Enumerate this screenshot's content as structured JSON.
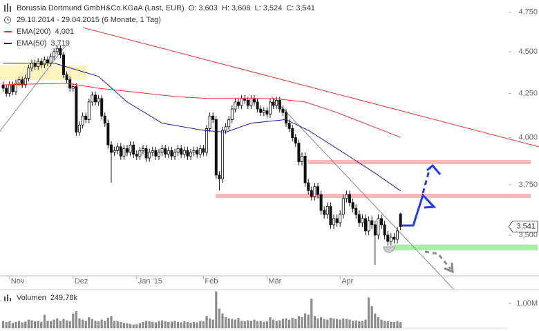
{
  "chart_data": {
    "type": "candlestick",
    "title": "Borussia Dortmund GmbH&Co.KGaA (Last, EUR)",
    "ohlc_labels": [
      "O: 3,603",
      "H: 3,608",
      "L: 3,524",
      "C: 3,541"
    ],
    "subtitle": "29.10.2014 - 29.04.2015 (6 Monate, 1 Tag)",
    "last_close_label": "3,541",
    "log": true,
    "ylim": [
      3.31,
      4.83
    ],
    "yticks": [
      {
        "value": 3.5,
        "label": "3,500"
      },
      {
        "value": 3.75,
        "label": "3,750"
      },
      {
        "value": 4.0,
        "label": "4,000"
      },
      {
        "value": 4.25,
        "label": "4,250"
      },
      {
        "value": 4.5,
        "label": "4,500"
      },
      {
        "value": 4.75,
        "label": "4,750"
      }
    ],
    "xlim": [
      -1,
      159
    ],
    "xticks": [
      {
        "value": 2,
        "label": "Nov"
      },
      {
        "value": 22,
        "label": "Dez"
      },
      {
        "value": 42,
        "label": "Jan '15"
      },
      {
        "value": 63,
        "label": "Feb"
      },
      {
        "value": 83,
        "label": "Mär"
      },
      {
        "value": 106,
        "label": "Apr"
      }
    ],
    "open": [
      4.3,
      4.28,
      4.25,
      4.3,
      4.26,
      4.31,
      4.33,
      4.3,
      4.34,
      4.4,
      4.43,
      4.41,
      4.44,
      4.42,
      4.45,
      4.43,
      4.47,
      4.5,
      4.52,
      4.48,
      4.36,
      4.33,
      4.28,
      4.29,
      4.03,
      4.07,
      4.12,
      4.1,
      4.2,
      4.24,
      4.2,
      4.22,
      4.12,
      4.08,
      3.96,
      3.92,
      3.93,
      3.95,
      3.9,
      3.94,
      3.92,
      3.96,
      3.91,
      3.9,
      3.93,
      3.94,
      3.89,
      3.92,
      3.93,
      3.9,
      3.92,
      3.94,
      3.91,
      3.93,
      3.9,
      3.92,
      3.94,
      3.91,
      3.93,
      3.9,
      3.92,
      3.93,
      3.91,
      3.94,
      3.92,
      4.05,
      4.12,
      4.1,
      3.8,
      3.78,
      4.04,
      4.06,
      4.1,
      4.16,
      4.2,
      4.18,
      4.22,
      4.21,
      4.18,
      4.22,
      4.2,
      4.16,
      4.14,
      4.15,
      4.13,
      4.2,
      4.18,
      4.21,
      4.16,
      4.14,
      4.08,
      4.05,
      4.0,
      3.97,
      3.87,
      3.9,
      3.76,
      3.72,
      3.69,
      3.74,
      3.7,
      3.62,
      3.6,
      3.64,
      3.55,
      3.58,
      3.56,
      3.6,
      3.68,
      3.7,
      3.66,
      3.63,
      3.6,
      3.56,
      3.58,
      3.52,
      3.57,
      3.55,
      3.5,
      3.58,
      3.55,
      3.5,
      3.47,
      3.49,
      3.48,
      3.603
    ],
    "high": [
      4.32,
      4.3,
      4.32,
      4.32,
      4.33,
      4.35,
      4.35,
      4.36,
      4.42,
      4.45,
      4.45,
      4.46,
      4.46,
      4.47,
      4.47,
      4.49,
      4.52,
      4.54,
      4.54,
      4.5,
      4.38,
      4.35,
      4.31,
      4.31,
      4.09,
      4.14,
      4.14,
      4.22,
      4.26,
      4.26,
      4.24,
      4.24,
      4.14,
      4.1,
      3.98,
      3.95,
      3.97,
      3.97,
      3.96,
      3.96,
      3.98,
      3.98,
      3.93,
      3.95,
      3.96,
      3.96,
      3.94,
      3.95,
      3.95,
      3.94,
      3.96,
      3.96,
      3.95,
      3.95,
      3.94,
      3.96,
      3.96,
      3.95,
      3.95,
      3.94,
      3.95,
      3.95,
      3.96,
      3.96,
      4.07,
      4.14,
      4.14,
      4.12,
      3.82,
      4.06,
      4.08,
      4.12,
      4.18,
      4.22,
      4.22,
      4.24,
      4.24,
      4.23,
      4.24,
      4.24,
      4.22,
      4.18,
      4.17,
      4.17,
      4.22,
      4.22,
      4.23,
      4.23,
      4.18,
      4.16,
      4.1,
      4.07,
      4.02,
      3.99,
      3.92,
      3.92,
      3.78,
      3.74,
      3.76,
      3.76,
      3.72,
      3.64,
      3.66,
      3.66,
      3.6,
      3.6,
      3.62,
      3.7,
      3.72,
      3.72,
      3.68,
      3.65,
      3.62,
      3.6,
      3.6,
      3.59,
      3.59,
      3.57,
      3.6,
      3.6,
      3.57,
      3.52,
      3.51,
      3.51,
      3.54,
      3.608
    ],
    "low": [
      4.26,
      4.23,
      4.23,
      4.24,
      4.24,
      4.29,
      4.28,
      4.28,
      4.32,
      4.38,
      4.39,
      4.39,
      4.4,
      4.4,
      4.41,
      4.41,
      4.45,
      4.48,
      4.46,
      4.34,
      4.31,
      4.26,
      4.26,
      4.01,
      4.01,
      4.05,
      4.08,
      4.08,
      4.18,
      4.18,
      4.18,
      4.1,
      4.06,
      3.94,
      3.76,
      3.9,
      3.91,
      3.88,
      3.88,
      3.9,
      3.9,
      3.89,
      3.88,
      3.88,
      3.91,
      3.87,
      3.87,
      3.9,
      3.88,
      3.88,
      3.9,
      3.89,
      3.89,
      3.88,
      3.88,
      3.9,
      3.89,
      3.89,
      3.88,
      3.88,
      3.9,
      3.89,
      3.89,
      3.9,
      3.9,
      4.03,
      4.08,
      3.78,
      3.72,
      3.76,
      4.02,
      4.04,
      4.08,
      4.14,
      4.16,
      4.16,
      4.19,
      4.16,
      4.16,
      4.18,
      4.14,
      4.12,
      4.12,
      4.11,
      4.11,
      4.16,
      4.16,
      4.14,
      4.12,
      4.06,
      4.03,
      3.98,
      3.95,
      3.85,
      3.85,
      3.74,
      3.7,
      3.67,
      3.67,
      3.68,
      3.6,
      3.58,
      3.58,
      3.53,
      3.53,
      3.54,
      3.54,
      3.58,
      3.66,
      3.64,
      3.61,
      3.58,
      3.54,
      3.54,
      3.5,
      3.5,
      3.53,
      3.36,
      3.48,
      3.53,
      3.48,
      3.45,
      3.45,
      3.46,
      3.46,
      3.524
    ],
    "close": [
      4.28,
      4.25,
      4.3,
      4.26,
      4.31,
      4.33,
      4.3,
      4.34,
      4.4,
      4.43,
      4.41,
      4.44,
      4.42,
      4.45,
      4.43,
      4.47,
      4.5,
      4.52,
      4.48,
      4.36,
      4.33,
      4.28,
      4.29,
      4.03,
      4.07,
      4.12,
      4.1,
      4.2,
      4.24,
      4.2,
      4.22,
      4.12,
      4.08,
      3.96,
      3.92,
      3.93,
      3.95,
      3.9,
      3.94,
      3.92,
      3.96,
      3.91,
      3.9,
      3.93,
      3.94,
      3.89,
      3.92,
      3.93,
      3.9,
      3.92,
      3.94,
      3.91,
      3.93,
      3.9,
      3.92,
      3.94,
      3.91,
      3.93,
      3.9,
      3.92,
      3.93,
      3.91,
      3.94,
      3.92,
      4.05,
      4.12,
      4.1,
      3.8,
      3.78,
      4.04,
      4.06,
      4.1,
      4.16,
      4.2,
      4.18,
      4.22,
      4.21,
      4.18,
      4.22,
      4.2,
      4.16,
      4.14,
      4.15,
      4.13,
      4.2,
      4.18,
      4.21,
      4.16,
      4.14,
      4.08,
      4.05,
      4.0,
      3.97,
      3.87,
      3.9,
      3.76,
      3.72,
      3.69,
      3.74,
      3.7,
      3.62,
      3.6,
      3.64,
      3.55,
      3.58,
      3.56,
      3.6,
      3.68,
      3.7,
      3.66,
      3.63,
      3.6,
      3.56,
      3.58,
      3.52,
      3.57,
      3.55,
      3.5,
      3.58,
      3.55,
      3.5,
      3.47,
      3.49,
      3.48,
      3.52,
      3.541
    ],
    "up_color": "#ffffff",
    "down_color": "#111111",
    "series": [
      {
        "name": "EMA(200)",
        "color": "#e8302a",
        "x": [
          0,
          20,
          30,
          45,
          55,
          65,
          85,
          95,
          105,
          115,
          125
        ],
        "values": [
          4.3,
          4.31,
          4.28,
          4.25,
          4.23,
          4.22,
          4.22,
          4.2,
          4.14,
          4.07,
          4.001
        ],
        "value_label": "4,001"
      },
      {
        "name": "EMA(50)",
        "color": "#1c1ca0",
        "x": [
          0,
          16,
          30,
          39,
          50,
          63,
          70,
          78,
          89,
          96,
          106,
          117,
          125
        ],
        "values": [
          4.43,
          4.43,
          4.35,
          4.2,
          4.08,
          4.04,
          4.03,
          4.08,
          4.1,
          4.04,
          3.93,
          3.81,
          3.719
        ],
        "value_label": "3,719"
      }
    ],
    "volume": {
      "name": "Volumen",
      "value_label": "249,78k",
      "color": "#8c8c8c",
      "ylim": [
        0,
        1570000
      ],
      "yticks": [
        {
          "value": 1000000,
          "label": "1,00M"
        }
      ],
      "values": [
        300000,
        250000,
        280000,
        220000,
        260000,
        300000,
        240000,
        270000,
        350000,
        320000,
        280000,
        300000,
        260000,
        550000,
        300000,
        280000,
        350000,
        400000,
        300000,
        380000,
        320000,
        280000,
        600000,
        700000,
        400000,
        350000,
        300000,
        450000,
        380000,
        300000,
        280000,
        350000,
        300000,
        420000,
        500000,
        300000,
        280000,
        250000,
        220000,
        200000,
        180000,
        150000,
        170000,
        200000,
        250000,
        300000,
        280000,
        260000,
        240000,
        300000,
        320000,
        280000,
        250000,
        270000,
        300000,
        260000,
        240000,
        280000,
        250000,
        230000,
        260000,
        240000,
        300000,
        280000,
        500000,
        400000,
        350000,
        1500000,
        800000,
        600000,
        450000,
        400000,
        380000,
        350000,
        420000,
        300000,
        280000,
        320000,
        300000,
        350000,
        280000,
        300000,
        260000,
        280000,
        450000,
        350000,
        300000,
        320000,
        380000,
        400000,
        350000,
        420000,
        380000,
        500000,
        450000,
        600000,
        550000,
        1200000,
        500000,
        400000,
        450000,
        380000,
        350000,
        420000,
        400000,
        380000,
        350000,
        400000,
        380000,
        350000,
        300000,
        320000,
        280000,
        300000,
        350000,
        1250000,
        900000,
        600000,
        450000,
        350000,
        300000,
        280000,
        260000,
        250000,
        300000,
        249780
      ]
    }
  }
}
